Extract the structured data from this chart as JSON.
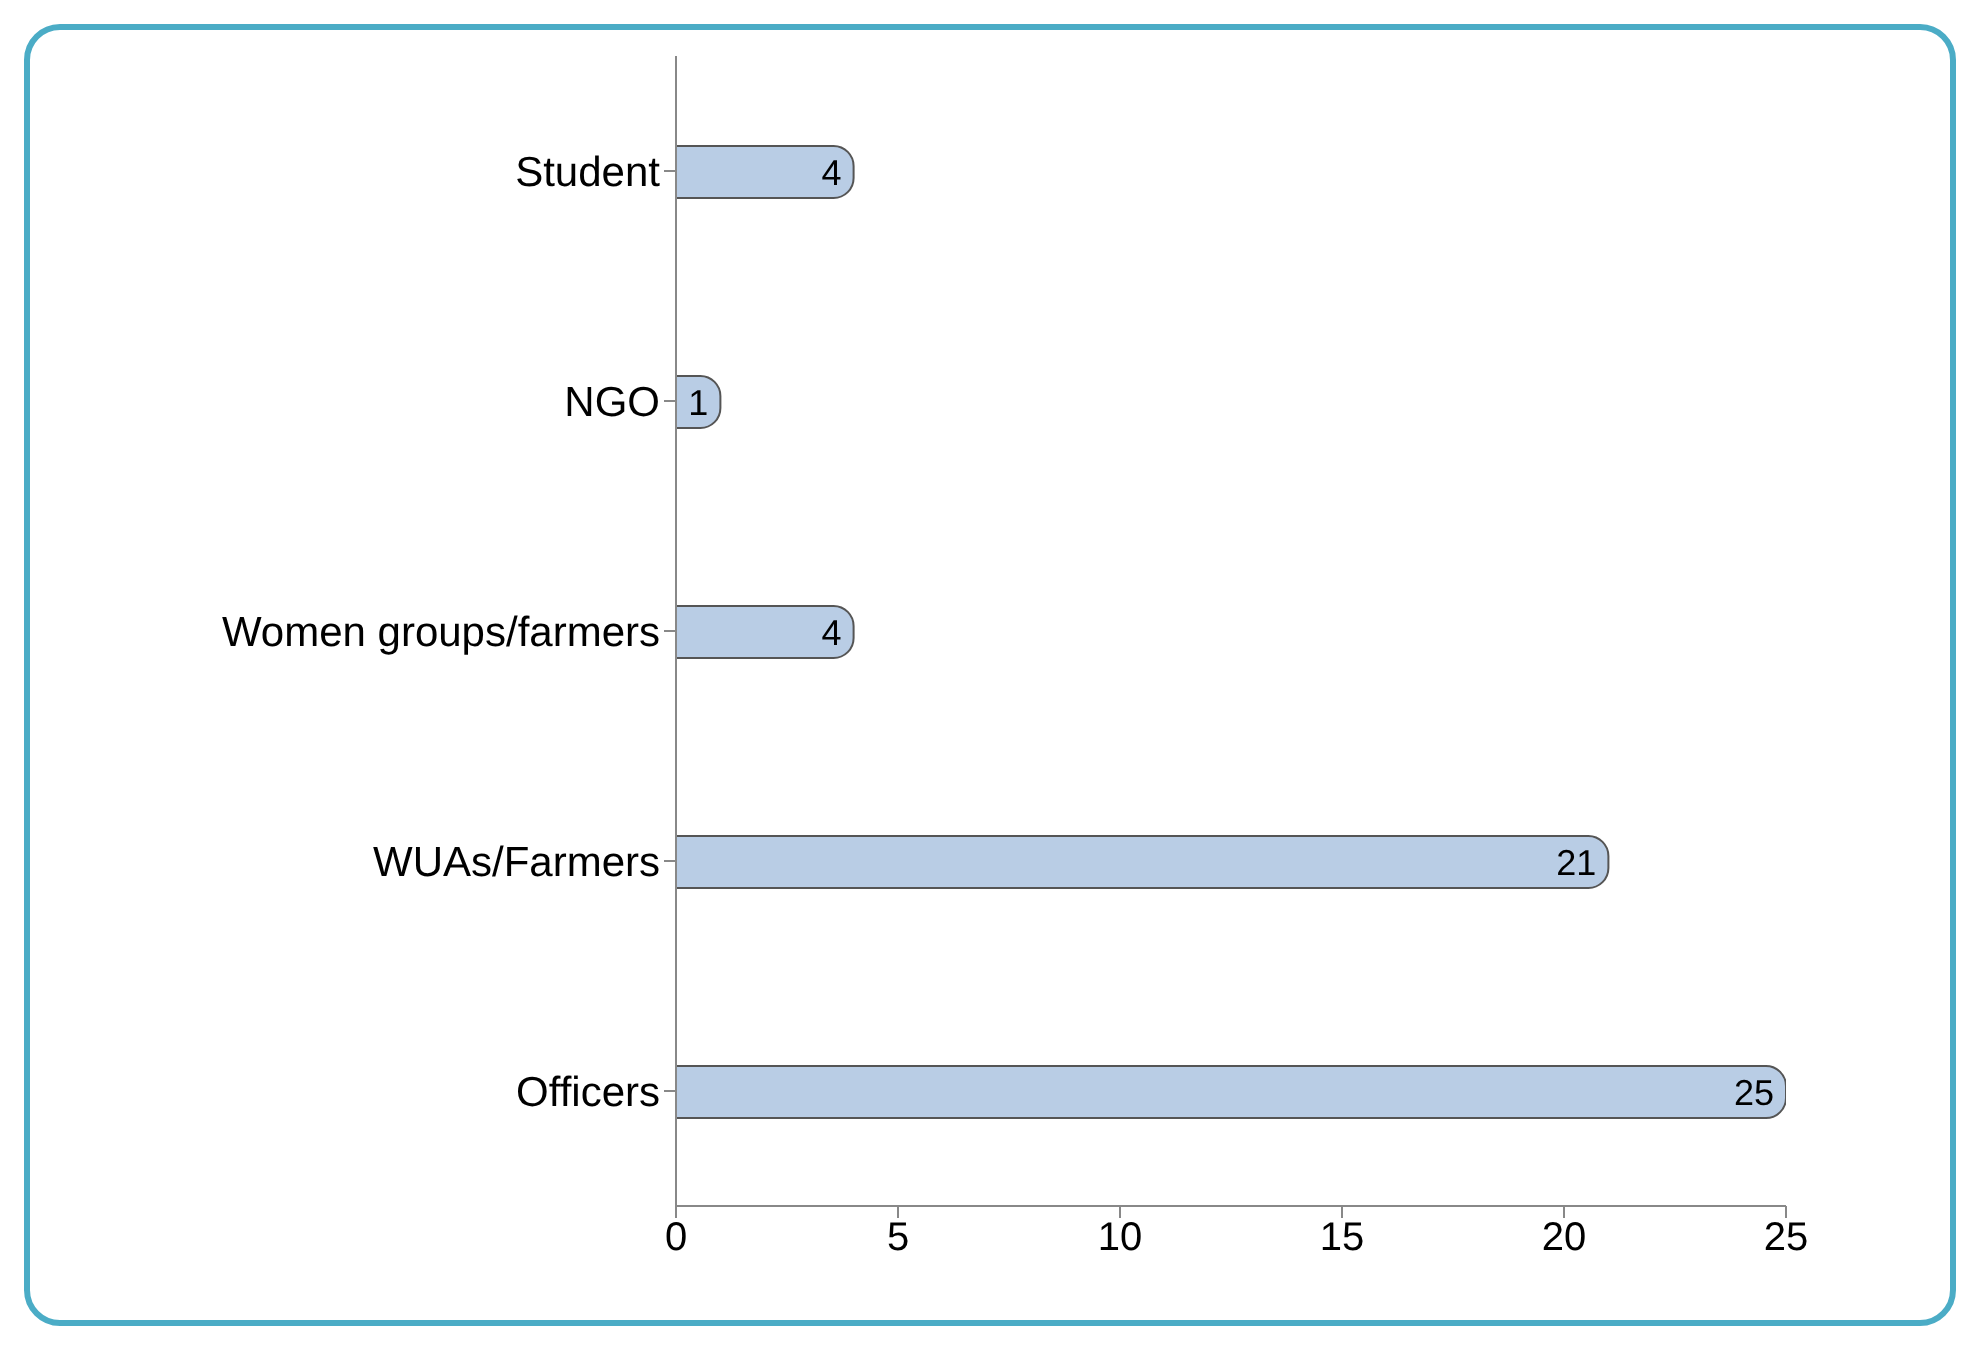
{
  "chart_data": {
    "type": "bar",
    "orientation": "horizontal",
    "categories": [
      "Student",
      "NGO",
      "Women groups/farmers",
      "WUAs/Farmers",
      "Officers"
    ],
    "values": [
      4,
      1,
      4,
      21,
      25
    ],
    "color": "#b9cde5",
    "xlim": [
      0,
      25
    ],
    "xticks": [
      0,
      5,
      10,
      15,
      20,
      25
    ],
    "data_labels": true,
    "grid": false
  }
}
